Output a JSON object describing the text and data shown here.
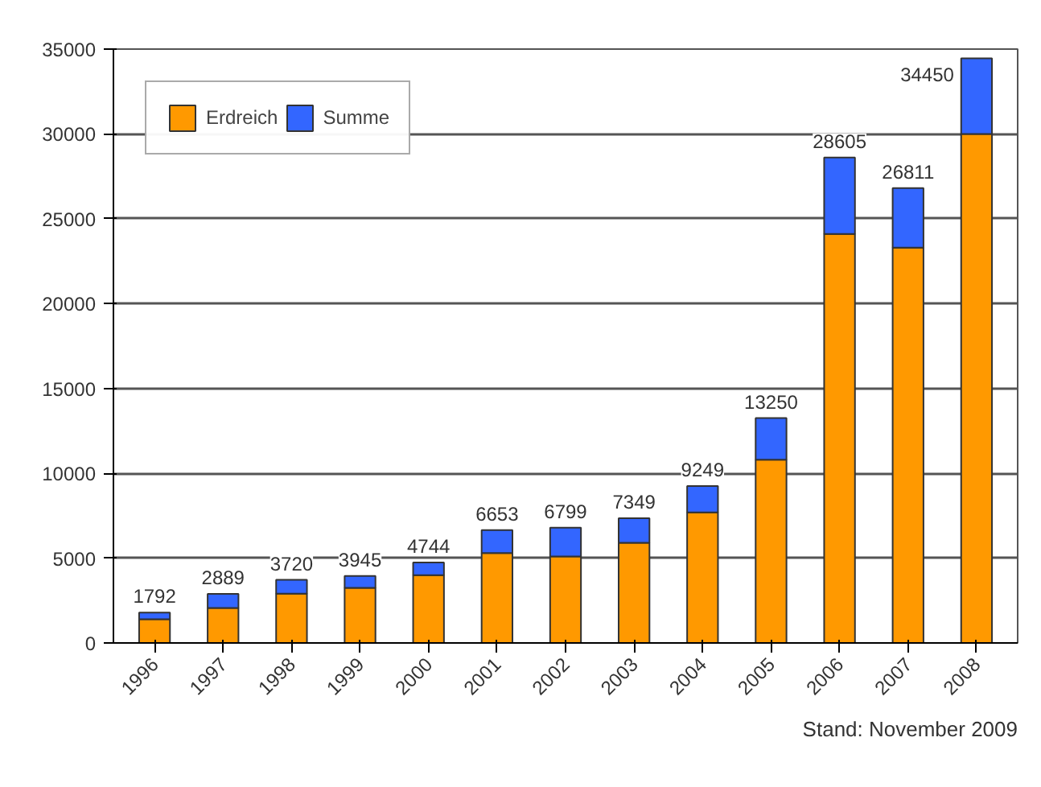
{
  "chart_data": {
    "type": "bar",
    "stacked": true,
    "categories": [
      "1996",
      "1997",
      "1998",
      "1999",
      "2000",
      "2001",
      "2002",
      "2003",
      "2004",
      "2005",
      "2006",
      "2007",
      "2008"
    ],
    "series": [
      {
        "name": "Erdreich",
        "color": "#ff9900",
        "values": [
          1400,
          2060,
          2900,
          3250,
          4000,
          5300,
          5100,
          5900,
          7700,
          10800,
          24100,
          23300,
          30000
        ]
      },
      {
        "name": "Summe",
        "color": "#3366ff",
        "values": [
          392,
          829,
          820,
          695,
          744,
          1353,
          1699,
          1449,
          1549,
          2450,
          4505,
          3511,
          4450
        ]
      }
    ],
    "totals": [
      "1792",
      "2889",
      "3720",
      "3945",
      "4744",
      "6653",
      "6799",
      "7349",
      "9249",
      "13250",
      "28605",
      "26811",
      "34450"
    ],
    "ylim": [
      0,
      35000
    ],
    "yticks": [
      0,
      5000,
      10000,
      15000,
      20000,
      25000,
      30000,
      35000
    ],
    "grid": "y",
    "legend": "top left",
    "annotations": [
      "Stand: November 2009"
    ]
  }
}
